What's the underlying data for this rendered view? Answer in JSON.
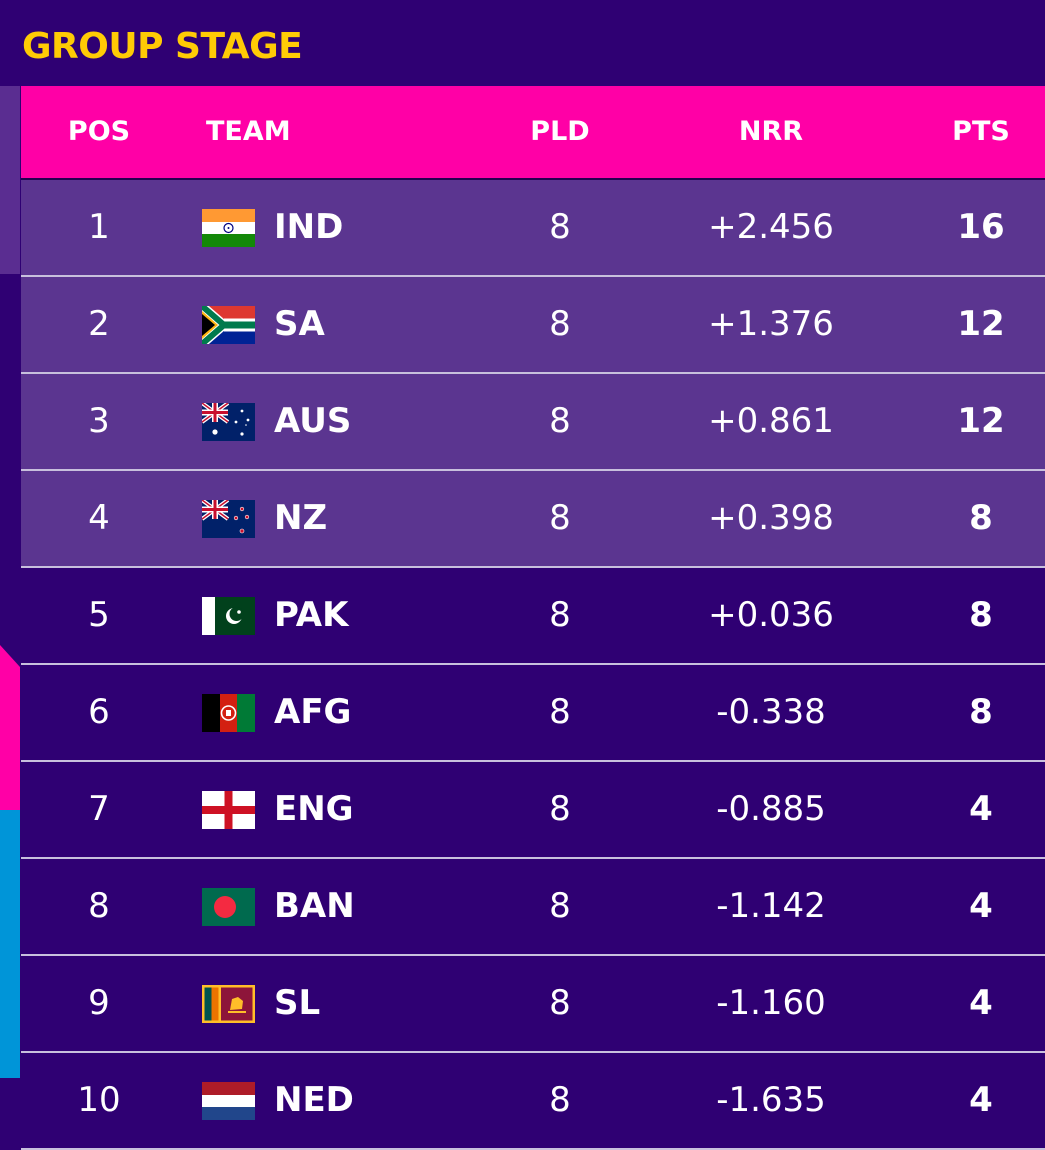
{
  "heading": "GROUP STAGE",
  "columns": {
    "pos": "POS",
    "team": "TEAM",
    "pld": "PLD",
    "nrr": "NRR",
    "pts": "PTS"
  },
  "colors": {
    "background": "#2f0073",
    "header": "#ff00a6",
    "heading": "#ffcb05",
    "qualified_row": "#5b3590"
  },
  "rows": [
    {
      "pos": "1",
      "team": "IND",
      "flag_icon": "india-flag-icon",
      "pld": "8",
      "nrr": "+2.456",
      "pts": "16"
    },
    {
      "pos": "2",
      "team": "SA",
      "flag_icon": "south-africa-flag-icon",
      "pld": "8",
      "nrr": "+1.376",
      "pts": "12"
    },
    {
      "pos": "3",
      "team": "AUS",
      "flag_icon": "australia-flag-icon",
      "pld": "8",
      "nrr": "+0.861",
      "pts": "12"
    },
    {
      "pos": "4",
      "team": "NZ",
      "flag_icon": "new-zealand-flag-icon",
      "pld": "8",
      "nrr": "+0.398",
      "pts": "8"
    },
    {
      "pos": "5",
      "team": "PAK",
      "flag_icon": "pakistan-flag-icon",
      "pld": "8",
      "nrr": "+0.036",
      "pts": "8"
    },
    {
      "pos": "6",
      "team": "AFG",
      "flag_icon": "afghanistan-flag-icon",
      "pld": "8",
      "nrr": "-0.338",
      "pts": "8"
    },
    {
      "pos": "7",
      "team": "ENG",
      "flag_icon": "england-flag-icon",
      "pld": "8",
      "nrr": "-0.885",
      "pts": "4"
    },
    {
      "pos": "8",
      "team": "BAN",
      "flag_icon": "bangladesh-flag-icon",
      "pld": "8",
      "nrr": "-1.142",
      "pts": "4"
    },
    {
      "pos": "9",
      "team": "SL",
      "flag_icon": "sri-lanka-flag-icon",
      "pld": "8",
      "nrr": "-1.160",
      "pts": "4"
    },
    {
      "pos": "10",
      "team": "NED",
      "flag_icon": "netherlands-flag-icon",
      "pld": "8",
      "nrr": "-1.635",
      "pts": "4"
    }
  ]
}
